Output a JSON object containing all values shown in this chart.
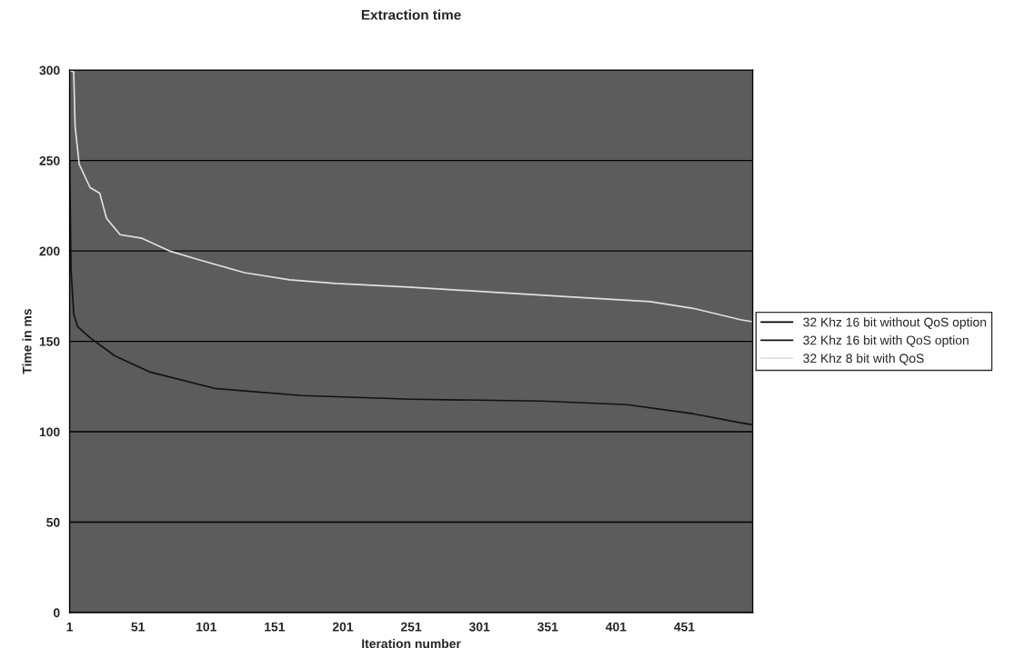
{
  "chart_data": {
    "type": "line",
    "title": "Extraction time",
    "xlabel": "Iteration number",
    "ylabel": "Time in ms",
    "xlim": [
      1,
      501
    ],
    "xticks": [
      1,
      51,
      101,
      151,
      201,
      251,
      301,
      351,
      401,
      451
    ],
    "ylim": [
      0,
      300
    ],
    "yticks": [
      0,
      50,
      100,
      150,
      200,
      250,
      300
    ],
    "grid": "y",
    "legend": "right",
    "series": [
      {
        "name": "32 Khz 16 bit without QoS option",
        "color": "#000000"
      },
      {
        "name": "32 Khz 16 bit with QoS option",
        "color": "#111111",
        "x": [
          1,
          2,
          4,
          7,
          16,
          34,
          60,
          107,
          171,
          251,
          346,
          409,
          457,
          492,
          500
        ],
        "values": [
          250,
          190,
          165,
          158,
          152,
          142,
          133,
          124,
          120,
          118,
          117,
          115,
          110,
          105,
          104
        ]
      },
      {
        "name": "32 Khz 8 bit with QoS",
        "color": "#e0e0e0",
        "x": [
          1,
          4,
          5,
          8,
          16,
          23,
          28,
          38,
          54,
          74,
          96,
          129,
          162,
          196,
          249,
          315,
          381,
          426,
          459,
          492,
          500
        ],
        "values": [
          300,
          299,
          269,
          248,
          235,
          232,
          218,
          209,
          207,
          200,
          195,
          188,
          184,
          182,
          180,
          177,
          174,
          172,
          168,
          162,
          161
        ]
      }
    ]
  }
}
